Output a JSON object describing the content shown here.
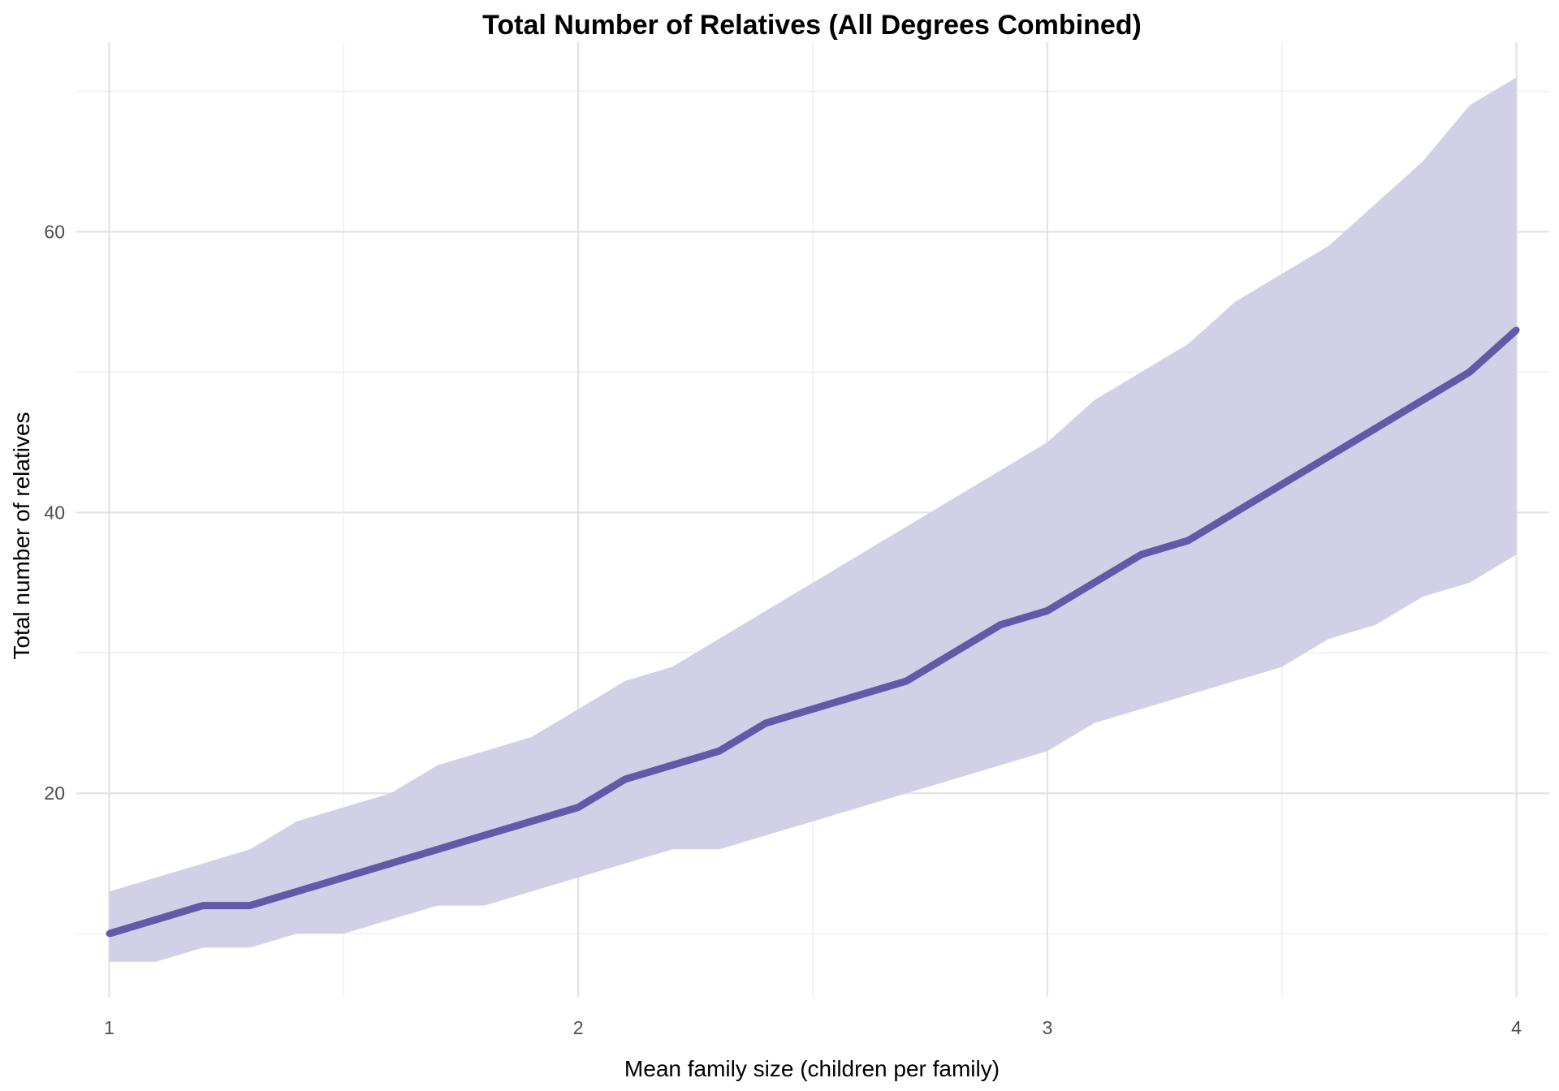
{
  "chart_data": {
    "type": "area",
    "title": "Total Number of Relatives (All Degrees Combined)",
    "xlabel": "Mean family size (children per family)",
    "ylabel": "Total number of relatives",
    "x_ticks": [
      "1",
      "2",
      "3",
      "4"
    ],
    "y_ticks": [
      "20",
      "40",
      "60"
    ],
    "xlim": [
      0.93,
      4.07
    ],
    "ylim": [
      5.5,
      73.5
    ],
    "grid": true,
    "colors": {
      "line": "#6459a8",
      "band": "#cfcde5",
      "grid_major": "#e3e3e3",
      "grid_minor": "#efefef"
    },
    "x": [
      1.0,
      1.1,
      1.2,
      1.3,
      1.4,
      1.5,
      1.6,
      1.7,
      1.8,
      1.9,
      2.0,
      2.1,
      2.2,
      2.3,
      2.4,
      2.5,
      2.6,
      2.7,
      2.8,
      2.9,
      3.0,
      3.1,
      3.2,
      3.3,
      3.4,
      3.5,
      3.6,
      3.7,
      3.8,
      3.9,
      4.0
    ],
    "series": [
      {
        "role": "mean",
        "values": [
          10,
          11,
          12,
          12,
          13,
          14,
          15,
          16,
          17,
          18,
          19,
          21,
          22,
          23,
          25,
          26,
          27,
          28,
          30,
          32,
          33,
          35,
          37,
          38,
          40,
          42,
          44,
          46,
          48,
          50,
          53
        ]
      },
      {
        "role": "upper",
        "values": [
          13,
          14,
          15,
          16,
          18,
          19,
          20,
          22,
          23,
          24,
          26,
          28,
          29,
          31,
          33,
          35,
          37,
          39,
          41,
          43,
          45,
          48,
          50,
          52,
          55,
          57,
          59,
          62,
          65,
          69,
          71
        ]
      },
      {
        "role": "lower",
        "values": [
          8,
          8,
          9,
          9,
          10,
          10,
          11,
          12,
          12,
          13,
          14,
          15,
          16,
          16,
          17,
          18,
          19,
          20,
          21,
          22,
          23,
          25,
          26,
          27,
          28,
          29,
          31,
          32,
          34,
          35,
          37
        ]
      }
    ]
  }
}
